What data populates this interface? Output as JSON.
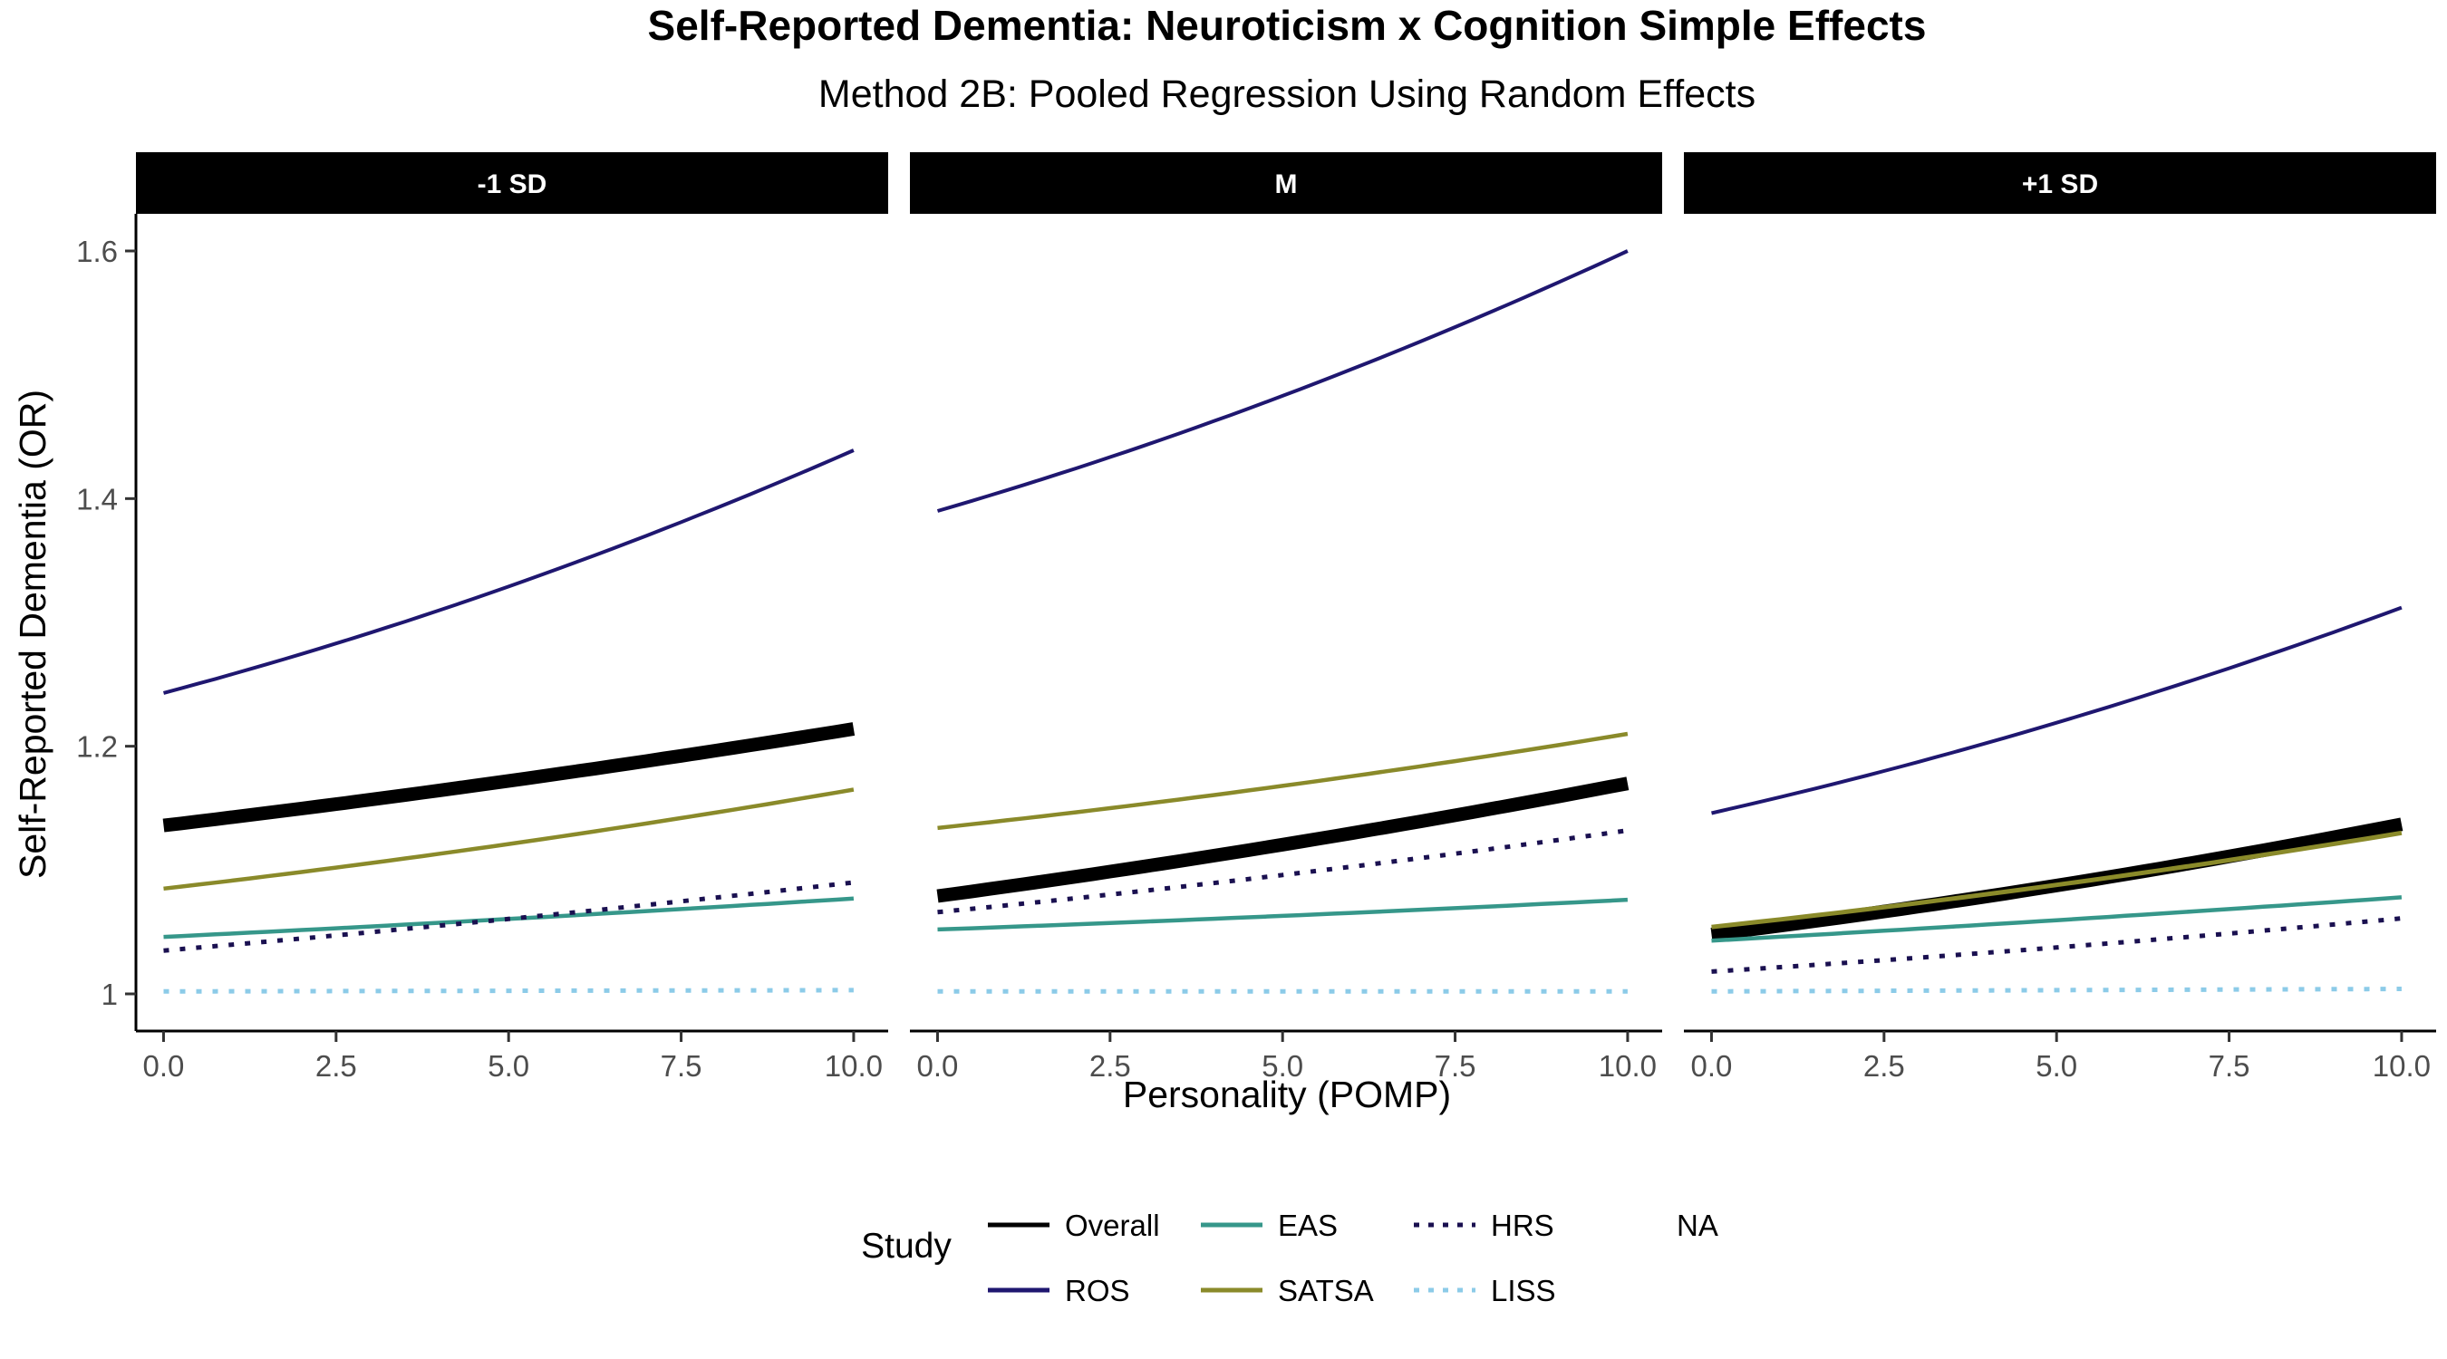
{
  "chart_data": {
    "type": "line",
    "title": "Self-Reported Dementia: Neuroticism x Cognition Simple Effects",
    "subtitle": "Method 2B: Pooled Regression Using Random Effects",
    "xlabel": "Personality (POMP)",
    "ylabel": "Self-Reported Dementia (OR)",
    "xlim": [
      -0.4,
      10.5
    ],
    "ylim": [
      0.97,
      1.63
    ],
    "x_ticks": [
      0,
      2.5,
      5,
      7.5,
      10
    ],
    "x_tick_labels": [
      "0.0",
      "2.5",
      "5.0",
      "7.5",
      "10.0"
    ],
    "y_ticks": [
      1.0,
      1.2,
      1.4,
      1.6
    ],
    "y_tick_labels": [
      "1",
      "1.2",
      "1.4",
      "1.6"
    ],
    "grid": false,
    "legend": {
      "title": "Study",
      "position": "bottom",
      "entries": [
        {
          "label": "Overall",
          "color": "#000000",
          "dash": "solid",
          "width": 5
        },
        {
          "label": "ROS",
          "color": "#1f1770",
          "dash": "solid",
          "width": 5
        },
        {
          "label": "EAS",
          "color": "#36978a",
          "dash": "solid",
          "width": 5
        },
        {
          "label": "SATSA",
          "color": "#8a8a2a",
          "dash": "solid",
          "width": 5
        },
        {
          "label": "HRS",
          "color": "#1a1050",
          "dash": "dotted",
          "width": 5
        },
        {
          "label": "LISS",
          "color": "#8ccbe8",
          "dash": "dotted",
          "width": 5
        },
        {
          "label": "NA",
          "color": null,
          "dash": "none",
          "width": 0
        }
      ]
    },
    "panels": [
      {
        "label": "-1 SD",
        "series": [
          {
            "name": "ROS",
            "color": "#1f1770",
            "dash": "solid",
            "width": 4,
            "x": [
              0,
              10
            ],
            "y": [
              1.243,
              1.439
            ],
            "curve": 0.012
          },
          {
            "name": "Overall",
            "color": "#000000",
            "dash": "solid",
            "width": 15,
            "x": [
              0,
              10
            ],
            "y": [
              1.136,
              1.214
            ],
            "curve": 0.003
          },
          {
            "name": "SATSA",
            "color": "#8a8a2a",
            "dash": "solid",
            "width": 4.5,
            "x": [
              0,
              10
            ],
            "y": [
              1.085,
              1.165
            ],
            "curve": 0.004
          },
          {
            "name": "EAS",
            "color": "#36978a",
            "dash": "solid",
            "width": 4.5,
            "x": [
              0,
              10
            ],
            "y": [
              1.046,
              1.077
            ],
            "curve": 0.001
          },
          {
            "name": "HRS",
            "color": "#1a1050",
            "dash": "dotted",
            "width": 5,
            "x": [
              0,
              10
            ],
            "y": [
              1.035,
              1.09
            ],
            "curve": 0.002
          },
          {
            "name": "LISS",
            "color": "#8ccbe8",
            "dash": "dotted",
            "width": 5,
            "x": [
              0,
              10
            ],
            "y": [
              1.002,
              1.003
            ],
            "curve": 0
          }
        ]
      },
      {
        "label": "M",
        "series": [
          {
            "name": "ROS",
            "color": "#1f1770",
            "dash": "solid",
            "width": 4,
            "x": [
              0,
              10
            ],
            "y": [
              1.39,
              1.6
            ],
            "curve": 0.012
          },
          {
            "name": "SATSA",
            "color": "#8a8a2a",
            "dash": "solid",
            "width": 4.5,
            "x": [
              0,
              10
            ],
            "y": [
              1.134,
              1.21
            ],
            "curve": 0.004
          },
          {
            "name": "Overall",
            "color": "#000000",
            "dash": "solid",
            "width": 15,
            "x": [
              0,
              10
            ],
            "y": [
              1.079,
              1.17
            ],
            "curve": 0.004
          },
          {
            "name": "HRS",
            "color": "#1a1050",
            "dash": "dotted",
            "width": 5,
            "x": [
              0,
              10
            ],
            "y": [
              1.066,
              1.132
            ],
            "curve": 0.003
          },
          {
            "name": "EAS",
            "color": "#36978a",
            "dash": "solid",
            "width": 4.5,
            "x": [
              0,
              10
            ],
            "y": [
              1.052,
              1.076
            ],
            "curve": 0.001
          },
          {
            "name": "LISS",
            "color": "#8ccbe8",
            "dash": "dotted",
            "width": 5,
            "x": [
              0,
              10
            ],
            "y": [
              1.002,
              1.002
            ],
            "curve": 0
          }
        ]
      },
      {
        "label": "+1 SD",
        "series": [
          {
            "name": "ROS",
            "color": "#1f1770",
            "dash": "solid",
            "width": 4,
            "x": [
              0,
              10
            ],
            "y": [
              1.146,
              1.312
            ],
            "curve": 0.01
          },
          {
            "name": "Overall",
            "color": "#000000",
            "dash": "solid",
            "width": 15,
            "x": [
              0,
              10
            ],
            "y": [
              1.048,
              1.137
            ],
            "curve": 0.005
          },
          {
            "name": "SATSA",
            "color": "#8a8a2a",
            "dash": "solid",
            "width": 5,
            "x": [
              0,
              10
            ],
            "y": [
              1.054,
              1.13
            ],
            "curve": 0.004
          },
          {
            "name": "EAS",
            "color": "#36978a",
            "dash": "solid",
            "width": 4.5,
            "x": [
              0,
              10
            ],
            "y": [
              1.043,
              1.078
            ],
            "curve": 0.001
          },
          {
            "name": "HRS",
            "color": "#1a1050",
            "dash": "dotted",
            "width": 5,
            "x": [
              0,
              10
            ],
            "y": [
              1.018,
              1.061
            ],
            "curve": 0.002
          },
          {
            "name": "LISS",
            "color": "#8ccbe8",
            "dash": "dotted",
            "width": 5,
            "x": [
              0,
              10
            ],
            "y": [
              1.002,
              1.004
            ],
            "curve": 0
          }
        ]
      }
    ]
  }
}
